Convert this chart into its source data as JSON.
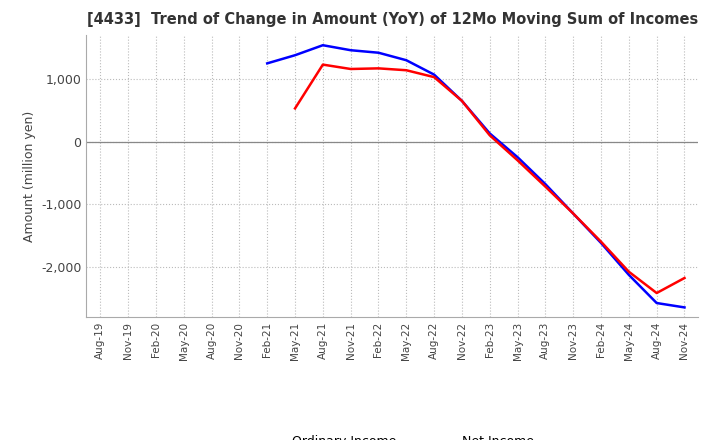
{
  "title": "[4433]  Trend of Change in Amount (YoY) of 12Mo Moving Sum of Incomes",
  "ylabel": "Amount (million yen)",
  "ylim": [
    -2800,
    1700
  ],
  "yticks": [
    -2000,
    -1000,
    0,
    1000
  ],
  "background_color": "#ffffff",
  "grid_color": "#bbbbbb",
  "ordinary_income_color": "#0000ff",
  "net_income_color": "#ff0000",
  "line_width": 1.8,
  "x_labels": [
    "Aug-19",
    "Nov-19",
    "Feb-20",
    "May-20",
    "Aug-20",
    "Nov-20",
    "Feb-21",
    "May-21",
    "Aug-21",
    "Nov-21",
    "Feb-22",
    "May-22",
    "Aug-22",
    "Nov-22",
    "Feb-23",
    "May-23",
    "Aug-23",
    "Nov-23",
    "Feb-24",
    "May-24",
    "Aug-24",
    "Nov-24"
  ],
  "ordinary_income": [
    null,
    null,
    null,
    null,
    null,
    null,
    1250,
    1380,
    1540,
    1460,
    1420,
    1300,
    1070,
    650,
    130,
    -250,
    -680,
    -1150,
    -1620,
    -2130,
    -2580,
    -2650
  ],
  "net_income": [
    null,
    null,
    null,
    null,
    null,
    null,
    null,
    530,
    1230,
    1160,
    1170,
    1140,
    1030,
    650,
    100,
    -300,
    -720,
    -1150,
    -1600,
    -2080,
    -2420,
    -2180
  ]
}
